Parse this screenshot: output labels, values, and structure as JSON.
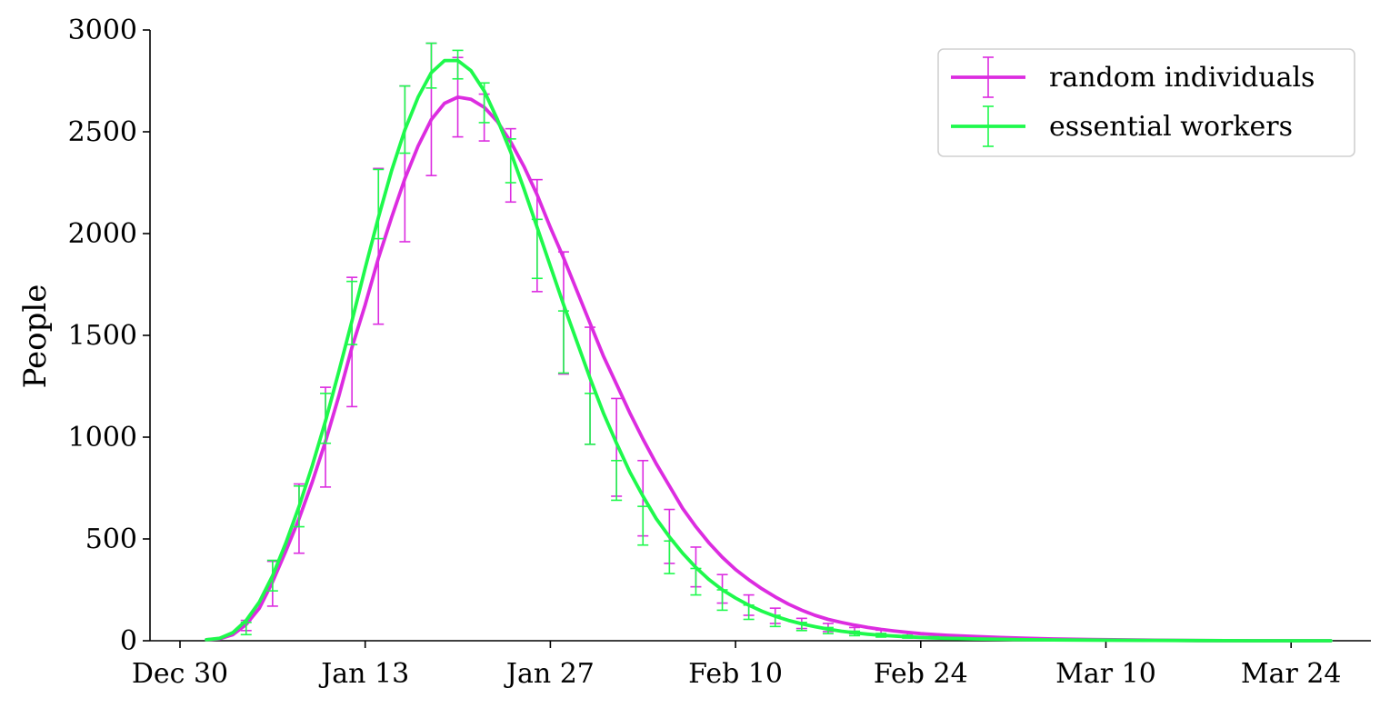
{
  "chart_data": {
    "type": "line",
    "title": "",
    "xlabel": "",
    "ylabel": "People",
    "ylim": [
      0,
      3000
    ],
    "xlim": [
      "2019-12-30",
      "2020-03-30"
    ],
    "grid": false,
    "legend_position": "top-right",
    "x_tick_labels": [
      "Dec 30",
      "Jan 13",
      "Jan 27",
      "Feb 10",
      "Feb 24",
      "Mar 10",
      "Mar 24"
    ],
    "y_tick_labels": [
      "0",
      "500",
      "1000",
      "1500",
      "2000",
      "2500",
      "3000"
    ],
    "series": [
      {
        "name": "random individuals",
        "color": "#dc2ce0",
        "x": [
          "2020-01-01",
          "2020-01-02",
          "2020-01-03",
          "2020-01-04",
          "2020-01-05",
          "2020-01-06",
          "2020-01-07",
          "2020-01-08",
          "2020-01-09",
          "2020-01-10",
          "2020-01-11",
          "2020-01-12",
          "2020-01-13",
          "2020-01-14",
          "2020-01-15",
          "2020-01-16",
          "2020-01-17",
          "2020-01-18",
          "2020-01-19",
          "2020-01-20",
          "2020-01-21",
          "2020-01-22",
          "2020-01-23",
          "2020-01-24",
          "2020-01-25",
          "2020-01-26",
          "2020-01-27",
          "2020-01-28",
          "2020-01-29",
          "2020-01-30",
          "2020-01-31",
          "2020-02-01",
          "2020-02-02",
          "2020-02-03",
          "2020-02-04",
          "2020-02-05",
          "2020-02-06",
          "2020-02-07",
          "2020-02-08",
          "2020-02-09",
          "2020-02-10",
          "2020-02-11",
          "2020-02-12",
          "2020-02-13",
          "2020-02-14",
          "2020-02-15",
          "2020-02-16",
          "2020-02-17",
          "2020-02-18",
          "2020-02-19",
          "2020-02-20",
          "2020-02-21",
          "2020-02-22",
          "2020-02-23",
          "2020-02-24",
          "2020-02-26",
          "2020-02-28",
          "2020-03-01",
          "2020-03-03",
          "2020-03-05",
          "2020-03-08",
          "2020-03-12",
          "2020-03-16",
          "2020-03-20",
          "2020-03-26"
        ],
        "y": [
          5,
          10,
          30,
          80,
          160,
          290,
          440,
          600,
          780,
          980,
          1200,
          1440,
          1650,
          1880,
          2080,
          2270,
          2430,
          2560,
          2640,
          2670,
          2660,
          2620,
          2550,
          2450,
          2330,
          2190,
          2030,
          1880,
          1720,
          1560,
          1400,
          1260,
          1120,
          990,
          870,
          760,
          650,
          560,
          480,
          410,
          350,
          300,
          255,
          215,
          180,
          150,
          125,
          105,
          90,
          77,
          65,
          56,
          48,
          41,
          35,
          27,
          21,
          16,
          12,
          9,
          6,
          3,
          1,
          0,
          0
        ],
        "errorbars": [
          {
            "x": "2020-01-04",
            "y": 80,
            "low": 50,
            "high": 100
          },
          {
            "x": "2020-01-06",
            "y": 280,
            "low": 170,
            "high": 390
          },
          {
            "x": "2020-01-08",
            "y": 600,
            "low": 430,
            "high": 770
          },
          {
            "x": "2020-01-10",
            "y": 1000,
            "low": 755,
            "high": 1245
          },
          {
            "x": "2020-01-12",
            "y": 1470,
            "low": 1150,
            "high": 1785
          },
          {
            "x": "2020-01-14",
            "y": 1940,
            "low": 1555,
            "high": 2320
          },
          {
            "x": "2020-01-16",
            "y": 2340,
            "low": 1960,
            "high": 2725
          },
          {
            "x": "2020-01-18",
            "y": 2610,
            "low": 2285,
            "high": 2935
          },
          {
            "x": "2020-01-20",
            "y": 2670,
            "low": 2475,
            "high": 2865
          },
          {
            "x": "2020-01-22",
            "y": 2570,
            "low": 2455,
            "high": 2685
          },
          {
            "x": "2020-01-24",
            "y": 2340,
            "low": 2155,
            "high": 2515
          },
          {
            "x": "2020-01-26",
            "y": 1990,
            "low": 1715,
            "high": 2265
          },
          {
            "x": "2020-01-28",
            "y": 1610,
            "low": 1310,
            "high": 1910
          },
          {
            "x": "2020-01-30",
            "y": 1250,
            "low": 965,
            "high": 1540
          },
          {
            "x": "2020-02-01",
            "y": 950,
            "low": 710,
            "high": 1190
          },
          {
            "x": "2020-02-03",
            "y": 700,
            "low": 515,
            "high": 885
          },
          {
            "x": "2020-02-05",
            "y": 515,
            "low": 380,
            "high": 645
          },
          {
            "x": "2020-02-07",
            "y": 365,
            "low": 265,
            "high": 460
          },
          {
            "x": "2020-02-09",
            "y": 255,
            "low": 185,
            "high": 325
          },
          {
            "x": "2020-02-11",
            "y": 175,
            "low": 125,
            "high": 225
          },
          {
            "x": "2020-02-13",
            "y": 120,
            "low": 85,
            "high": 160
          },
          {
            "x": "2020-02-15",
            "y": 85,
            "low": 60,
            "high": 110
          },
          {
            "x": "2020-02-17",
            "y": 65,
            "low": 45,
            "high": 85
          },
          {
            "x": "2020-02-19",
            "y": 50,
            "low": 35,
            "high": 65
          },
          {
            "x": "2020-02-21",
            "y": 40,
            "low": 28,
            "high": 52
          },
          {
            "x": "2020-02-23",
            "y": 32,
            "low": 22,
            "high": 42
          },
          {
            "x": "2020-02-25",
            "y": 26,
            "low": 18,
            "high": 34
          },
          {
            "x": "2020-02-27",
            "y": 20,
            "low": 14,
            "high": 26
          },
          {
            "x": "2020-02-29",
            "y": 15,
            "low": 10,
            "high": 20
          },
          {
            "x": "2020-03-02",
            "y": 11,
            "low": 7,
            "high": 15
          }
        ]
      },
      {
        "name": "essential workers",
        "color": "#1ef94c",
        "x": [
          "2020-01-01",
          "2020-01-02",
          "2020-01-03",
          "2020-01-04",
          "2020-01-05",
          "2020-01-06",
          "2020-01-07",
          "2020-01-08",
          "2020-01-09",
          "2020-01-10",
          "2020-01-11",
          "2020-01-12",
          "2020-01-13",
          "2020-01-14",
          "2020-01-15",
          "2020-01-16",
          "2020-01-17",
          "2020-01-18",
          "2020-01-19",
          "2020-01-20",
          "2020-01-21",
          "2020-01-22",
          "2020-01-23",
          "2020-01-24",
          "2020-01-25",
          "2020-01-26",
          "2020-01-27",
          "2020-01-28",
          "2020-01-29",
          "2020-01-30",
          "2020-01-31",
          "2020-02-01",
          "2020-02-02",
          "2020-02-03",
          "2020-02-04",
          "2020-02-05",
          "2020-02-06",
          "2020-02-07",
          "2020-02-08",
          "2020-02-09",
          "2020-02-10",
          "2020-02-11",
          "2020-02-12",
          "2020-02-13",
          "2020-02-14",
          "2020-02-15",
          "2020-02-16",
          "2020-02-17",
          "2020-02-18",
          "2020-02-19",
          "2020-02-20",
          "2020-02-21",
          "2020-02-22",
          "2020-02-23",
          "2020-02-24",
          "2020-02-26",
          "2020-02-28",
          "2020-03-01",
          "2020-03-03",
          "2020-03-05",
          "2020-03-08",
          "2020-03-12",
          "2020-03-16",
          "2020-03-20",
          "2020-03-26"
        ],
        "y": [
          5,
          12,
          40,
          100,
          190,
          320,
          480,
          660,
          860,
          1080,
          1320,
          1570,
          1830,
          2080,
          2310,
          2510,
          2670,
          2790,
          2850,
          2850,
          2800,
          2700,
          2560,
          2400,
          2220,
          2030,
          1840,
          1650,
          1470,
          1290,
          1120,
          970,
          830,
          710,
          600,
          510,
          430,
          360,
          300,
          250,
          210,
          175,
          145,
          120,
          100,
          83,
          69,
          57,
          47,
          39,
          32,
          27,
          23,
          19,
          16,
          12,
          9,
          7,
          5,
          4,
          3,
          2,
          1,
          0,
          0
        ],
        "errorbars": [
          {
            "x": "2020-01-04",
            "y": 60,
            "low": 30,
            "high": 90
          },
          {
            "x": "2020-01-06",
            "y": 320,
            "low": 245,
            "high": 395
          },
          {
            "x": "2020-01-08",
            "y": 660,
            "low": 560,
            "high": 760
          },
          {
            "x": "2020-01-10",
            "y": 1090,
            "low": 970,
            "high": 1215
          },
          {
            "x": "2020-01-12",
            "y": 1610,
            "low": 1455,
            "high": 1765
          },
          {
            "x": "2020-01-14",
            "y": 2145,
            "low": 1975,
            "high": 2315
          },
          {
            "x": "2020-01-16",
            "y": 2560,
            "low": 2395,
            "high": 2725
          },
          {
            "x": "2020-01-18",
            "y": 2825,
            "low": 2715,
            "high": 2935
          },
          {
            "x": "2020-01-20",
            "y": 2830,
            "low": 2760,
            "high": 2900
          },
          {
            "x": "2020-01-22",
            "y": 2645,
            "low": 2545,
            "high": 2740
          },
          {
            "x": "2020-01-24",
            "y": 2355,
            "low": 2250,
            "high": 2465
          },
          {
            "x": "2020-01-26",
            "y": 1925,
            "low": 1780,
            "high": 2070
          },
          {
            "x": "2020-01-28",
            "y": 1465,
            "low": 1315,
            "high": 1620
          },
          {
            "x": "2020-01-30",
            "y": 1090,
            "low": 965,
            "high": 1215
          },
          {
            "x": "2020-02-01",
            "y": 790,
            "low": 690,
            "high": 885
          },
          {
            "x": "2020-02-03",
            "y": 570,
            "low": 470,
            "high": 660
          },
          {
            "x": "2020-02-05",
            "y": 410,
            "low": 330,
            "high": 490
          },
          {
            "x": "2020-02-07",
            "y": 290,
            "low": 225,
            "high": 355
          },
          {
            "x": "2020-02-09",
            "y": 200,
            "low": 150,
            "high": 250
          },
          {
            "x": "2020-02-11",
            "y": 140,
            "low": 105,
            "high": 175
          },
          {
            "x": "2020-02-13",
            "y": 100,
            "low": 70,
            "high": 125
          },
          {
            "x": "2020-02-15",
            "y": 70,
            "low": 50,
            "high": 90
          },
          {
            "x": "2020-02-17",
            "y": 50,
            "low": 35,
            "high": 65
          },
          {
            "x": "2020-02-19",
            "y": 36,
            "low": 25,
            "high": 47
          },
          {
            "x": "2020-02-21",
            "y": 27,
            "low": 18,
            "high": 36
          },
          {
            "x": "2020-02-23",
            "y": 20,
            "low": 13,
            "high": 27
          },
          {
            "x": "2020-02-25",
            "y": 15,
            "low": 10,
            "high": 20
          },
          {
            "x": "2020-02-27",
            "y": 11,
            "low": 7,
            "high": 15
          },
          {
            "x": "2020-02-29",
            "y": 8,
            "low": 5,
            "high": 11
          },
          {
            "x": "2020-03-02",
            "y": 6,
            "low": 4,
            "high": 8
          }
        ]
      }
    ]
  }
}
